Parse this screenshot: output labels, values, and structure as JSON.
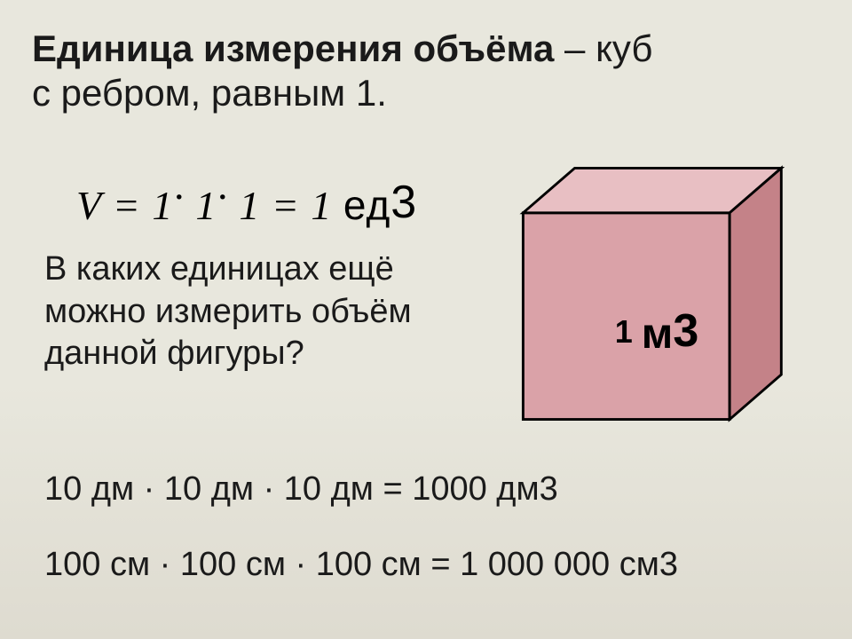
{
  "slide": {
    "title_bold": "Единица измерения объёма",
    "title_rest_line1": " – куб",
    "title_line2": "с ребром, равным 1.",
    "formula": {
      "V": "V",
      "eq1": "=",
      "one_a": "1",
      "dot_a": "·",
      "one_b": "1",
      "dot_b": "·",
      "one_c": "1",
      "eq2": "=",
      "one_res": "1",
      "unit": "ед",
      "sup": "3"
    },
    "question_l1": "В каких единицах ещё",
    "question_l2": "можно измерить объём",
    "question_l3": "данной фигуры?",
    "eq_dm": "10 дм · 10 дм · 10 дм = 1000 дм3",
    "eq_cm": "100 см · 100 см · 100 см = 1 000 000 см3",
    "cube_label": {
      "one": "1 ",
      "m": "м",
      "three": "3"
    }
  },
  "cube_style": {
    "front_fill": "#daa2a8",
    "top_fill": "#e8bfc3",
    "side_fill": "#c48288",
    "stroke": "#000000",
    "stroke_w": "3",
    "depth_dx": "60",
    "depth_dy": "52",
    "front_x": "20",
    "front_y": "72",
    "front_w": "240",
    "front_h": "240"
  },
  "colors": {
    "text": "#1a1a1a",
    "bg_top": "#e8e7dd",
    "bg_bottom": "#dedbd0"
  }
}
